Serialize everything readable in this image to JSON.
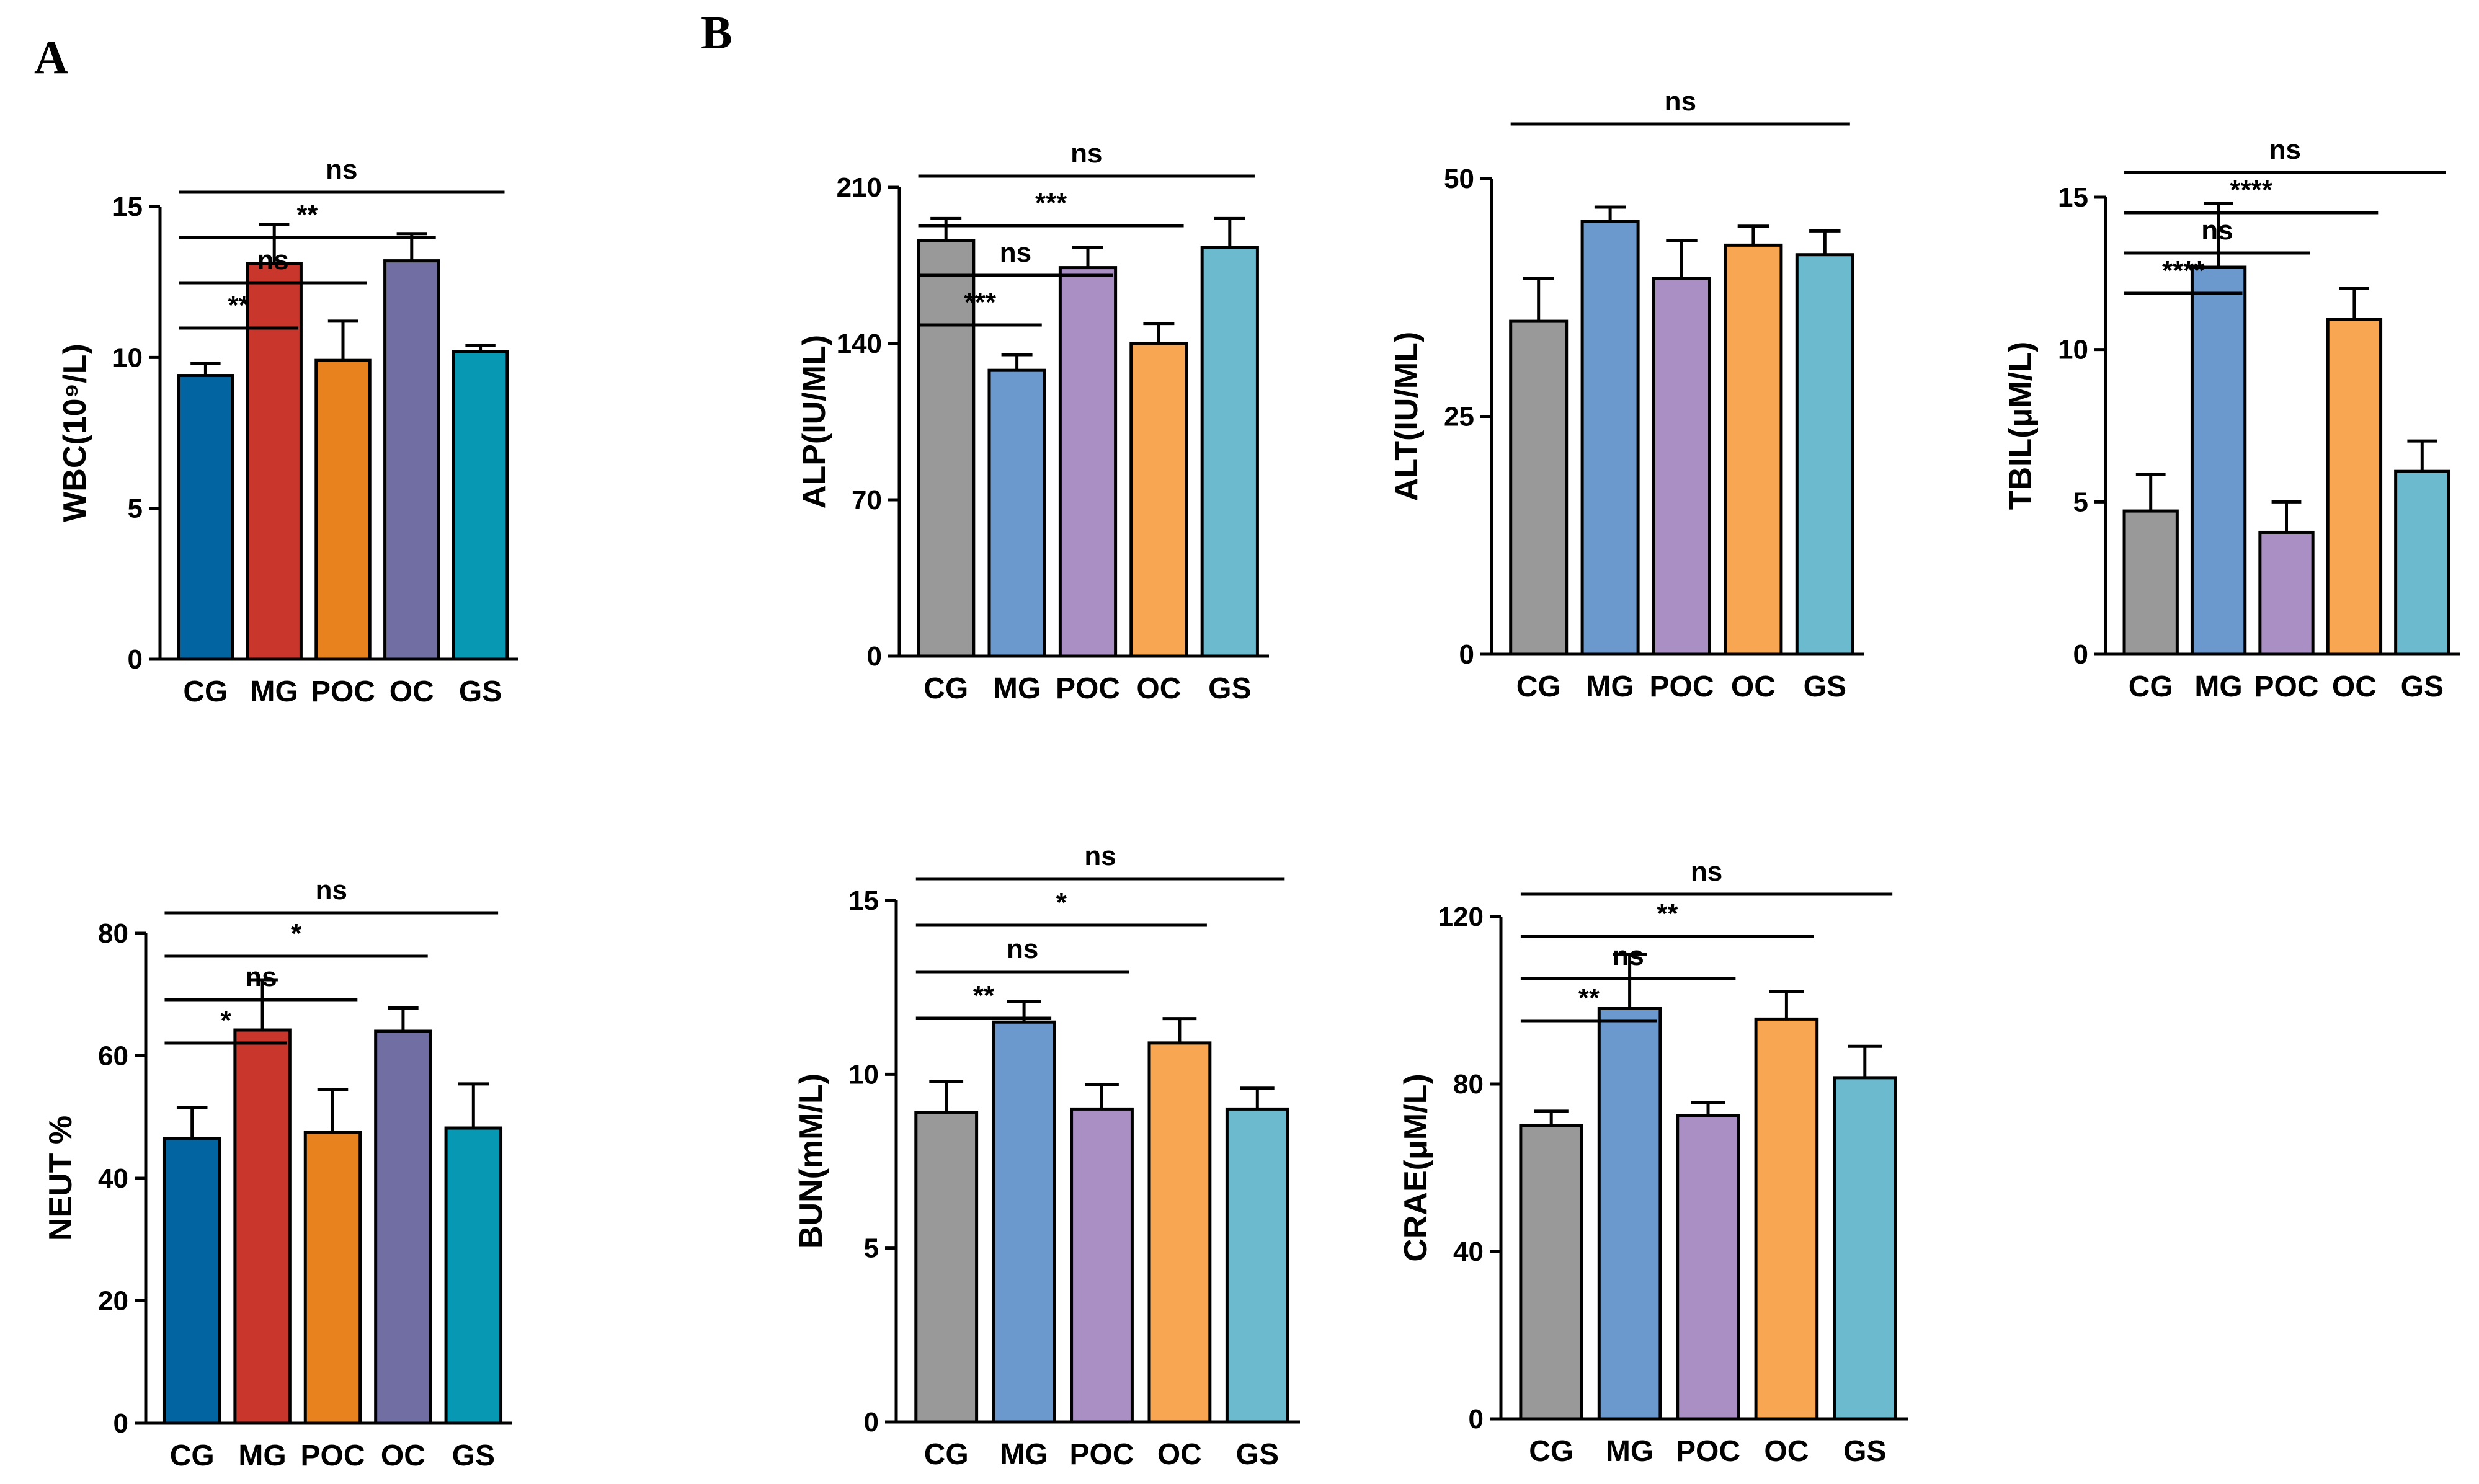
{
  "panel_labels": [
    "A",
    "B"
  ],
  "chart_data": [
    {
      "id": "wbc",
      "type": "bar",
      "categories": [
        "CG",
        "MG",
        "POC",
        "OC",
        "GS"
      ],
      "values": [
        9.4,
        13.1,
        9.9,
        13.2,
        10.2
      ],
      "errors": [
        0.4,
        1.3,
        1.3,
        0.9,
        0.2
      ],
      "colors": [
        "#0264a0",
        "#c9362b",
        "#e8821f",
        "#716ea4",
        "#0798b4"
      ],
      "ylabel": "WBC(10⁹/L)",
      "ylim": [
        0,
        15
      ],
      "yticks": [
        0,
        5,
        10,
        15
      ],
      "comparisons": [
        {
          "to": 1,
          "label": "**"
        },
        {
          "to": 2,
          "label": "ns"
        },
        {
          "to": 3,
          "label": "**"
        },
        {
          "to": 4,
          "label": "ns"
        }
      ]
    },
    {
      "id": "alp",
      "type": "bar",
      "categories": [
        "CG",
        "MG",
        "POC",
        "OC",
        "GS"
      ],
      "values": [
        186,
        128,
        174,
        140,
        183
      ],
      "errors": [
        10,
        7,
        9,
        9,
        13
      ],
      "colors": [
        "#999999",
        "#6b98cd",
        "#aa8fc4",
        "#f9a652",
        "#6cbacd"
      ],
      "ylabel": "ALP(IU/ML)",
      "ylim": [
        0,
        210
      ],
      "yticks": [
        0,
        70,
        140,
        210
      ],
      "comparisons": [
        {
          "to": 1,
          "label": "***"
        },
        {
          "to": 2,
          "label": "ns"
        },
        {
          "to": 3,
          "label": "***"
        },
        {
          "to": 4,
          "label": "ns"
        }
      ]
    },
    {
      "id": "alt",
      "type": "bar",
      "categories": [
        "CG",
        "MG",
        "POC",
        "OC",
        "GS"
      ],
      "values": [
        35,
        45.5,
        39.5,
        43,
        42
      ],
      "errors": [
        4.5,
        1.5,
        4,
        2,
        2.5
      ],
      "colors": [
        "#999999",
        "#6b98cd",
        "#aa8fc4",
        "#f9a652",
        "#6cbacd"
      ],
      "ylabel": "ALT(IU/ML)",
      "ylim": [
        0,
        50
      ],
      "yticks": [
        0,
        25,
        50
      ],
      "comparisons": [
        {
          "from": 0,
          "to": 4,
          "label": "ns"
        }
      ]
    },
    {
      "id": "tbil",
      "type": "bar",
      "categories": [
        "CG",
        "MG",
        "POC",
        "OC",
        "GS"
      ],
      "values": [
        4.7,
        12.7,
        4.0,
        11.0,
        6.0
      ],
      "errors": [
        1.2,
        2.1,
        1.0,
        1.0,
        1.0
      ],
      "colors": [
        "#999999",
        "#6b98cd",
        "#aa8fc4",
        "#f9a652",
        "#6cbacd"
      ],
      "ylabel": "TBIL(μM/L)",
      "ylim": [
        0,
        15
      ],
      "yticks": [
        0,
        5,
        10,
        15
      ],
      "comparisons": [
        {
          "to": 1,
          "label": "****"
        },
        {
          "to": 2,
          "label": "ns"
        },
        {
          "to": 3,
          "label": "****"
        },
        {
          "to": 4,
          "label": "ns"
        }
      ]
    },
    {
      "id": "neut",
      "type": "bar",
      "categories": [
        "CG",
        "MG",
        "POC",
        "OC",
        "GS"
      ],
      "values": [
        46.5,
        64.2,
        47.5,
        64.0,
        48.2
      ],
      "errors": [
        5,
        8.2,
        7,
        3.8,
        7.2
      ],
      "colors": [
        "#0264a0",
        "#c9362b",
        "#e8821f",
        "#716ea4",
        "#0798b4"
      ],
      "ylabel": "NEUT %",
      "ylim": [
        0,
        80
      ],
      "yticks": [
        0,
        20,
        40,
        60,
        80
      ],
      "comparisons": [
        {
          "to": 1,
          "label": "*"
        },
        {
          "to": 2,
          "label": "ns"
        },
        {
          "to": 3,
          "label": "*"
        },
        {
          "to": 4,
          "label": "ns"
        }
      ]
    },
    {
      "id": "bun",
      "type": "bar",
      "categories": [
        "CG",
        "MG",
        "POC",
        "OC",
        "GS"
      ],
      "values": [
        8.9,
        11.5,
        9.0,
        10.9,
        9.0
      ],
      "errors": [
        0.9,
        0.6,
        0.7,
        0.7,
        0.6
      ],
      "colors": [
        "#999999",
        "#6b98cd",
        "#aa8fc4",
        "#f9a652",
        "#6cbacd"
      ],
      "ylabel": "BUN(mM/L)",
      "ylim": [
        0,
        15
      ],
      "yticks": [
        0,
        5,
        10,
        15
      ],
      "comparisons": [
        {
          "to": 1,
          "label": "**"
        },
        {
          "to": 2,
          "label": "ns"
        },
        {
          "to": 3,
          "label": "*"
        },
        {
          "to": 4,
          "label": "ns"
        }
      ]
    },
    {
      "id": "crae",
      "type": "bar",
      "categories": [
        "CG",
        "MG",
        "POC",
        "OC",
        "GS"
      ],
      "values": [
        70,
        98,
        72.5,
        95.5,
        81.5
      ],
      "errors": [
        3.5,
        13,
        3,
        6.5,
        7.5
      ],
      "colors": [
        "#999999",
        "#6b98cd",
        "#aa8fc4",
        "#f9a652",
        "#6cbacd"
      ],
      "ylabel": "CRAE(μM/L)",
      "ylim": [
        0,
        120
      ],
      "yticks": [
        0,
        40,
        80,
        120
      ],
      "comparisons": [
        {
          "to": 1,
          "label": "**"
        },
        {
          "to": 2,
          "label": "ns"
        },
        {
          "to": 3,
          "label": "**"
        },
        {
          "to": 4,
          "label": "ns"
        }
      ]
    }
  ]
}
